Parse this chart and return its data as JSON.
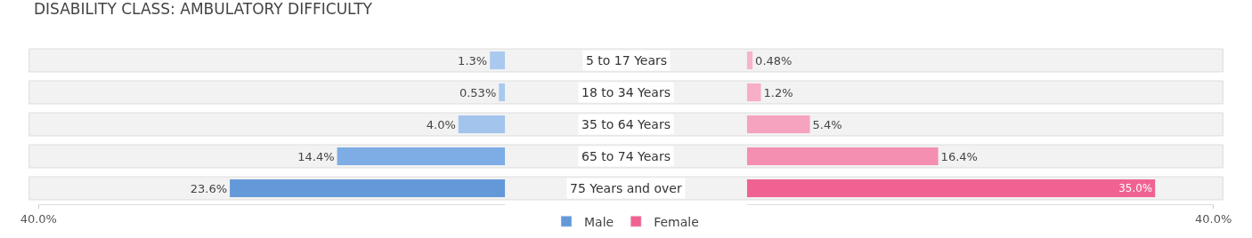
{
  "chart_data": [
    {
      "type": "bar",
      "orientation": "horizontal",
      "title": "DISABILITY CLASS: AMBULATORY DIFFICULTY",
      "categories": [
        "5 to 17 Years",
        "18 to 34 Years",
        "35 to 64 Years",
        "65 to 74 Years",
        "75 Years and over"
      ],
      "series": [
        {
          "name": "Male",
          "color": "#6399d9",
          "colors": [
            "#aac9ee",
            "#aac9ee",
            "#a3c4ec",
            "#7eace4",
            "#6399d9"
          ],
          "values": [
            1.3,
            0.53,
            4.0,
            14.4,
            23.6
          ],
          "value_labels": [
            "1.3%",
            "0.53%",
            "4.0%",
            "14.4%",
            "23.6%"
          ]
        }
      ],
      "xlim": [
        40,
        0
      ],
      "xticks": [
        {
          "value": 40,
          "label": "40.0%"
        }
      ],
      "tick_labels": "x",
      "legend": "bottom"
    },
    {
      "type": "bar",
      "orientation": "horizontal",
      "categories": [
        "5 to 17 Years",
        "18 to 34 Years",
        "35 to 64 Years",
        "65 to 74 Years",
        "75 Years and over"
      ],
      "series": [
        {
          "name": "Female",
          "color": "#f06292",
          "colors": [
            "#f7b3c9",
            "#f7aec6",
            "#f5a3be",
            "#f48fb1",
            "#f06292"
          ],
          "values": [
            0.48,
            1.2,
            5.4,
            16.4,
            35.0
          ],
          "value_labels": [
            "0.48%",
            "1.2%",
            "5.4%",
            "16.4%",
            "35.0%"
          ]
        }
      ],
      "xlim": [
        0,
        40
      ],
      "xticks": [
        {
          "value": 40,
          "label": "40.0%"
        }
      ],
      "tick_labels": "x",
      "legend": "bottom"
    }
  ]
}
